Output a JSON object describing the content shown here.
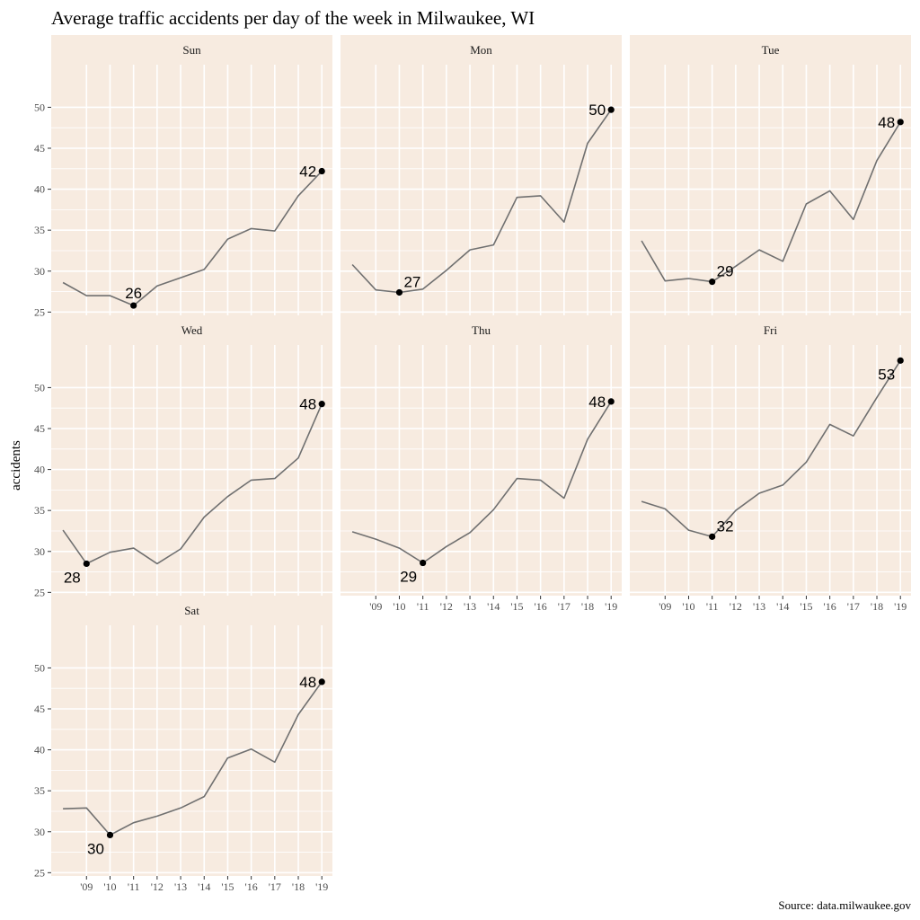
{
  "chart_data": {
    "type": "line",
    "title": "Average traffic accidents per day of the week in Milwaukee, WI",
    "ylabel": "accidents",
    "xlabel": "",
    "caption": "Source: data.milwaukee.gov",
    "x": [
      2008,
      2009,
      2010,
      2011,
      2012,
      2013,
      2014,
      2015,
      2016,
      2017,
      2018,
      2019
    ],
    "x_tick_values": [
      2009,
      2010,
      2011,
      2012,
      2013,
      2014,
      2015,
      2016,
      2017,
      2018,
      2019
    ],
    "x_tick_labels": [
      "'09",
      "'10",
      "'11",
      "'12",
      "'13",
      "'14",
      "'15",
      "'16",
      "'17",
      "'18",
      "'19"
    ],
    "y_ticks": [
      25,
      30,
      35,
      40,
      45,
      50
    ],
    "ylim": [
      24.6,
      55.2
    ],
    "grid": true,
    "panel_background": "#f7ebe0",
    "line_color": "#707070",
    "point_color": "#000000",
    "panels": [
      {
        "name": "Sun",
        "values": [
          28.6,
          27.0,
          27.0,
          25.8,
          28.2,
          29.2,
          30.2,
          33.9,
          35.2,
          34.9,
          39.2,
          42.2
        ],
        "labels": [
          {
            "year": 2011,
            "value": 25.8,
            "text": "26"
          },
          {
            "year": 2019,
            "value": 42.2,
            "text": "42"
          }
        ]
      },
      {
        "name": "Mon",
        "values": [
          30.8,
          27.7,
          27.4,
          27.8,
          30.1,
          32.6,
          33.2,
          39.0,
          39.2,
          36.0,
          45.6,
          49.7
        ],
        "labels": [
          {
            "year": 2010,
            "value": 27.4,
            "text": "27"
          },
          {
            "year": 2019,
            "value": 49.7,
            "text": "50"
          }
        ]
      },
      {
        "name": "Tue",
        "values": [
          33.7,
          28.8,
          29.1,
          28.7,
          30.6,
          32.6,
          31.2,
          38.2,
          39.8,
          36.3,
          43.5,
          48.2
        ],
        "labels": [
          {
            "year": 2011,
            "value": 28.7,
            "text": "29"
          },
          {
            "year": 2019,
            "value": 48.2,
            "text": "48"
          }
        ]
      },
      {
        "name": "Wed",
        "values": [
          32.6,
          28.5,
          29.9,
          30.4,
          28.5,
          30.3,
          34.2,
          36.7,
          38.7,
          38.9,
          41.4,
          48.0
        ],
        "labels": [
          {
            "year": 2009,
            "value": 28.5,
            "text": "28"
          },
          {
            "year": 2019,
            "value": 48.0,
            "text": "48"
          }
        ]
      },
      {
        "name": "Thu",
        "values": [
          32.4,
          31.5,
          30.4,
          28.6,
          30.6,
          32.3,
          35.1,
          38.9,
          38.7,
          36.5,
          43.7,
          48.3
        ],
        "labels": [
          {
            "year": 2011,
            "value": 28.6,
            "text": "29"
          },
          {
            "year": 2019,
            "value": 48.3,
            "text": "48"
          }
        ]
      },
      {
        "name": "Fri",
        "values": [
          36.1,
          35.2,
          32.6,
          31.8,
          35.0,
          37.1,
          38.1,
          40.9,
          45.5,
          44.1,
          48.8,
          53.3
        ],
        "labels": [
          {
            "year": 2011,
            "value": 31.8,
            "text": "32"
          },
          {
            "year": 2019,
            "value": 53.3,
            "text": "53"
          }
        ]
      },
      {
        "name": "Sat",
        "values": [
          32.8,
          32.9,
          29.6,
          31.1,
          31.9,
          32.9,
          34.3,
          39.0,
          40.1,
          38.5,
          44.3,
          48.3
        ],
        "labels": [
          {
            "year": 2010,
            "value": 29.6,
            "text": "30"
          },
          {
            "year": 2019,
            "value": 48.3,
            "text": "48"
          }
        ]
      }
    ]
  }
}
